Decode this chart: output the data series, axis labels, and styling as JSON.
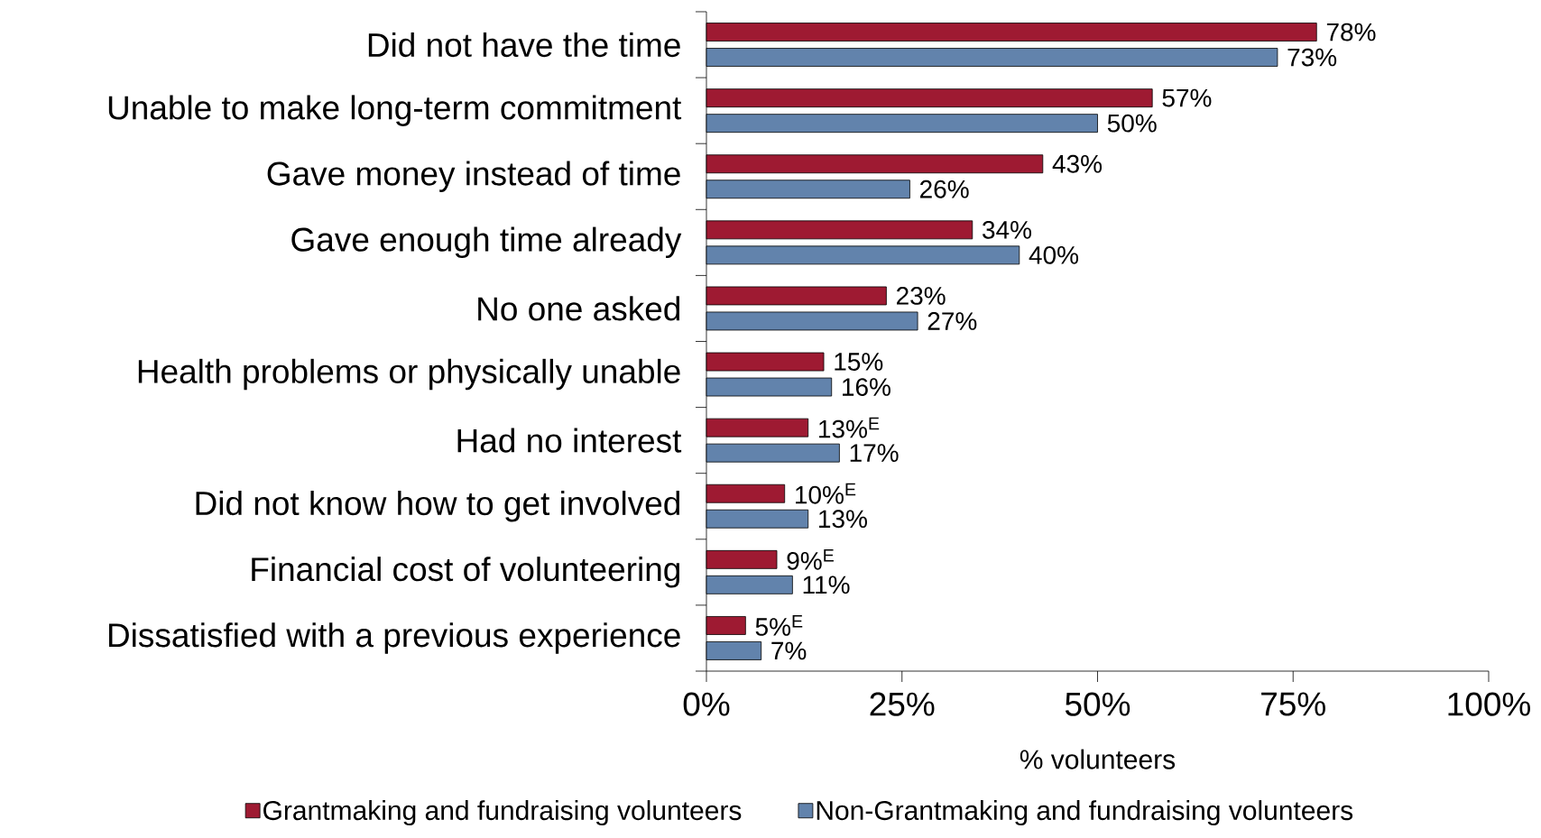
{
  "chart_data": {
    "type": "bar",
    "orientation": "horizontal",
    "xlabel": "% volunteers",
    "categories": [
      "Did not have the time",
      "Unable to make long-term commitment",
      "Gave money instead of time",
      "Gave enough time already",
      "No one asked",
      "Health problems or physically unable",
      "Had no interest",
      "Did not know how to get involved",
      "Financial cost of volunteering",
      "Dissatisfied with a previous experience"
    ],
    "series": [
      {
        "name": "Grantmaking and fundraising volunteers",
        "color": "#9e1a32",
        "values": [
          78,
          57,
          43,
          34,
          23,
          15,
          13,
          10,
          9,
          5
        ],
        "value_labels": [
          "78%",
          "57%",
          "43%",
          "34%",
          "23%",
          "15%",
          "13%$^{E}$",
          "10%$^{E}$",
          "9%$^{E}$",
          "5%$^{E}$"
        ]
      },
      {
        "name": "Non-Grantmaking and fundraising volunteers",
        "color": "#6283ac",
        "values": [
          73,
          50,
          26,
          40,
          27,
          16,
          17,
          13,
          11,
          7
        ],
        "value_labels": [
          "73%",
          "50%",
          "26%",
          "40%",
          "27%",
          "16%",
          "17%",
          "13%",
          "11%",
          "7%"
        ]
      }
    ],
    "xlim": [
      0,
      100
    ],
    "xticks": [
      {
        "value": 0,
        "label": "0%"
      },
      {
        "value": 25,
        "label": "25%"
      },
      {
        "value": 50,
        "label": "50%"
      },
      {
        "value": 75,
        "label": "75%"
      },
      {
        "value": 100,
        "label": "100%"
      }
    ],
    "grid": false,
    "legend": "bottom"
  }
}
